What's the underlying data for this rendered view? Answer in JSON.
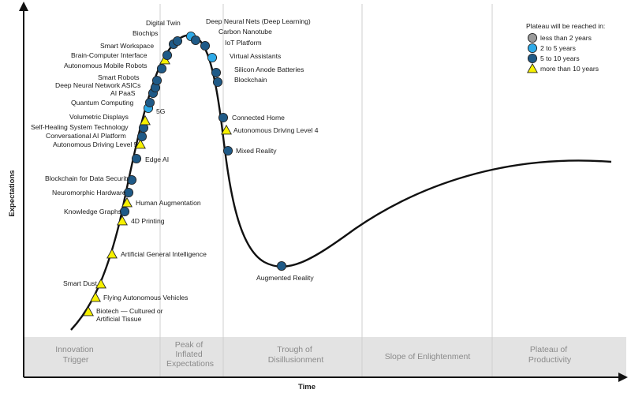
{
  "axes": {
    "y_title": "Expectations",
    "x_title": "Time"
  },
  "phases": [
    {
      "lines": [
        "Innovation",
        "Trigger"
      ]
    },
    {
      "lines": [
        "Peak of",
        "Inflated",
        "Expectations"
      ]
    },
    {
      "lines": [
        "Trough of",
        "Disillusionment"
      ]
    },
    {
      "lines": [
        "Slope of Enlightenment"
      ]
    },
    {
      "lines": [
        "Plateau of",
        "Productivity"
      ]
    }
  ],
  "legend": {
    "title": "Plateau will be reached in:",
    "items": [
      {
        "key": "lt2",
        "label": "less than 2 years",
        "color": "#9a9a9a",
        "shape": "circle"
      },
      {
        "key": "2to5",
        "label": "2 to 5 years",
        "color": "#2eaae8",
        "shape": "circle"
      },
      {
        "key": "5to10",
        "label": "5 to 10 years",
        "color": "#1f5a87",
        "shape": "circle"
      },
      {
        "key": "gt10",
        "label": "more than 10 years",
        "color": "#f6f000",
        "shape": "triangle"
      }
    ]
  },
  "technologies": [
    {
      "name": "Biotech — Cultured or",
      "name2": "Artificial Tissue",
      "category": "gt10"
    },
    {
      "name": "Flying Autonomous Vehicles",
      "category": "gt10"
    },
    {
      "name": "Smart Dust",
      "category": "gt10"
    },
    {
      "name": "Artificial General Intelligence",
      "category": "gt10"
    },
    {
      "name": "4D Printing",
      "category": "gt10"
    },
    {
      "name": "Knowledge Graphs",
      "category": "5to10"
    },
    {
      "name": "Human Augmentation",
      "category": "gt10"
    },
    {
      "name": "Neuromorphic Hardware",
      "category": "5to10"
    },
    {
      "name": "Blockchain for Data Security",
      "category": "5to10"
    },
    {
      "name": "Edge AI",
      "category": "5to10"
    },
    {
      "name": "Autonomous Driving Level 5",
      "category": "gt10"
    },
    {
      "name": "Conversational AI Platform",
      "category": "5to10"
    },
    {
      "name": "Self-Healing System Technology",
      "category": "5to10"
    },
    {
      "name": "Volumetric Displays",
      "category": "gt10"
    },
    {
      "name": "5G",
      "category": "2to5"
    },
    {
      "name": "Quantum Computing",
      "category": "5to10"
    },
    {
      "name": "AI PaaS",
      "category": "5to10"
    },
    {
      "name": "Deep Neural Network ASICs",
      "category": "5to10"
    },
    {
      "name": "Smart Robots",
      "category": "5to10"
    },
    {
      "name": "Autonomous Mobile Robots",
      "category": "5to10"
    },
    {
      "name": "Brain-Computer Interface",
      "category": "gt10"
    },
    {
      "name": "Smart Workspace",
      "category": "5to10"
    },
    {
      "name": "Biochips",
      "category": "5to10"
    },
    {
      "name": "Digital Twin",
      "category": "5to10"
    },
    {
      "name": "Deep Neural Nets (Deep Learning)",
      "category": "2to5"
    },
    {
      "name": "Carbon Nanotube",
      "category": "5to10"
    },
    {
      "name": "IoT Platform",
      "category": "5to10"
    },
    {
      "name": "Virtual Assistants",
      "category": "2to5"
    },
    {
      "name": "Silicon Anode Batteries",
      "category": "5to10"
    },
    {
      "name": "Blockchain",
      "category": "5to10"
    },
    {
      "name": "Connected Home",
      "category": "5to10"
    },
    {
      "name": "Autonomous Driving Level 4",
      "category": "gt10"
    },
    {
      "name": "Mixed Reality",
      "category": "5to10"
    },
    {
      "name": "Augmented Reality",
      "category": "5to10"
    }
  ]
}
